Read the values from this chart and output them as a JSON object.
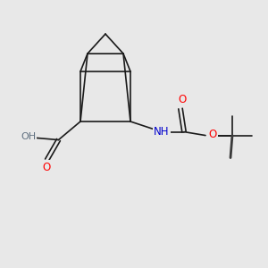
{
  "background_color": "#e8e8e8",
  "bond_color": "#1a1a1a",
  "bond_width": 1.2,
  "atom_colors": {
    "O": "#ff0000",
    "N": "#0000cd",
    "H_gray": "#607080",
    "C": "#1a1a1a"
  },
  "figsize": [
    3.0,
    3.0
  ],
  "dpi": 100
}
